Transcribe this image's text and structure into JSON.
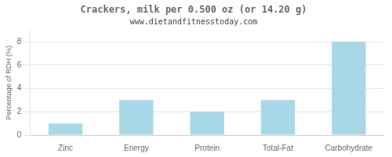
{
  "chart_data": {
    "type": "bar",
    "title": "Crackers, milk per 0.500 oz (or 14.20 g)",
    "subtitle": "www.dietandfitnesstoday.com",
    "categories": [
      "Zinc",
      "Energy",
      "Protein",
      "Total-Fat",
      "Carbohydrate"
    ],
    "values": [
      1.0,
      3.0,
      2.0,
      3.0,
      8.0
    ],
    "color": "#a8d8e8",
    "ylabel": "Percentage of RDH (%)",
    "ylim": [
      0,
      9
    ],
    "yticks": [
      0,
      2,
      4,
      6,
      8
    ],
    "grid": true
  }
}
